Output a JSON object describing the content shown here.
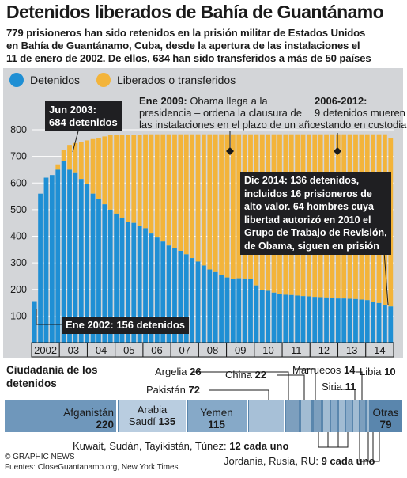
{
  "header": {
    "title": "Detenidos liberados de Bahía de Guantánamo",
    "subtitle_lines": [
      "779 prisioneros han sido retenidos en la prisión militar de Estados Unidos",
      "en Bahía de Guantánamo, Cuba, desde la apertura de las instalaciones el",
      "11 de enero de 2002. De ellos, 634 han sido transferidos a más de 50 países"
    ]
  },
  "legend": {
    "detained": "Detenidos",
    "released": "Liberados o transferidos"
  },
  "colors": {
    "detained": "#1f8fd4",
    "released": "#f3b43a",
    "plot_bg": "#d3d5d8",
    "dark": "#1f1f22"
  },
  "annotations": {
    "jun2003": [
      "Jun 2003:",
      "684 detenidos"
    ],
    "ene2009_head": "Ene 2009:",
    "ene2009_lines": [
      " Obama llega a la",
      "presidencia – ordena la clausura de",
      "las instalaciones en el plazo de un año"
    ],
    "y2006_head": "2006-2012:",
    "y2006_lines": [
      "9 detenidos mueren",
      "estando en custodia"
    ],
    "dic2014": [
      "Dic 2014: 136 detenidos,",
      "incluidos 16 prisioneros de",
      "alto valor. 64 hombres cuya",
      "libertad autorizó en 2010 el",
      "Grupo de Trabajo de Revisión,",
      "de Obama, siguen en prisión"
    ],
    "ene2002": "Ene 2002: 156 detenidos"
  },
  "chart_data": {
    "type": "bar",
    "stacked": true,
    "ylim": [
      0,
      800
    ],
    "yticks": [
      100,
      200,
      300,
      400,
      500,
      600,
      700,
      800
    ],
    "xtick_labels": [
      "2002",
      "03",
      "04",
      "05",
      "06",
      "07",
      "08",
      "09",
      "10",
      "11",
      "12",
      "13",
      "14"
    ],
    "grid": true,
    "series": [
      {
        "name": "Detenidos",
        "values": [
          156,
          560,
          620,
          630,
          650,
          684,
          650,
          640,
          615,
          595,
          560,
          540,
          520,
          500,
          485,
          470,
          455,
          450,
          440,
          430,
          410,
          395,
          380,
          365,
          355,
          345,
          332,
          318,
          305,
          290,
          275,
          265,
          255,
          245,
          240,
          242,
          241,
          240,
          215,
          198,
          195,
          188,
          182,
          180,
          179,
          177,
          175,
          174,
          172,
          171,
          170,
          168,
          166,
          166,
          165,
          164,
          162,
          160,
          154,
          149,
          142,
          136
        ]
      },
      {
        "name": "Liberados o transferidos",
        "values": [
          0,
          0,
          0,
          0,
          20,
          39,
          93,
          110,
          140,
          165,
          205,
          230,
          255,
          280,
          295,
          310,
          325,
          330,
          340,
          353,
          373,
          388,
          403,
          418,
          428,
          438,
          451,
          465,
          478,
          493,
          508,
          518,
          528,
          538,
          543,
          541,
          542,
          543,
          568,
          585,
          588,
          595,
          601,
          603,
          604,
          606,
          608,
          609,
          611,
          612,
          613,
          615,
          617,
          617,
          618,
          619,
          621,
          623,
          629,
          634,
          641,
          634
        ]
      }
    ]
  },
  "citizenship": {
    "title_lines": [
      "Ciudadanía de los",
      "detenidos"
    ],
    "segments": [
      {
        "name": "Afganistán",
        "value": "220"
      },
      {
        "name": "Arabia Saudí",
        "name_lines": [
          "Arabia",
          "Saudí"
        ],
        "value": "135"
      },
      {
        "name": "Yemen",
        "value": "115"
      },
      {
        "name": "Pakistán",
        "value": "72"
      },
      {
        "name": "Argelia",
        "value": "26"
      },
      {
        "name": "China",
        "value": "22"
      },
      {
        "name": "Marruecos",
        "value": "14"
      },
      {
        "name": "Siria",
        "value": "11"
      },
      {
        "name": "Libia",
        "value": "10"
      },
      {
        "name": "Otras",
        "value": "79"
      }
    ],
    "group_kuwait": {
      "text": "Kuwait, Sudán, Tayikistán, Túnez:",
      "value": "12 cada uno"
    },
    "group_jordania": {
      "text": "Jordania, Rusia, RU:",
      "value": "9 cada uno"
    }
  },
  "footer": {
    "copyright": "© GRAPHIC NEWS",
    "sources": "Fuentes: CloseGuantanamo.org, New York Times"
  }
}
